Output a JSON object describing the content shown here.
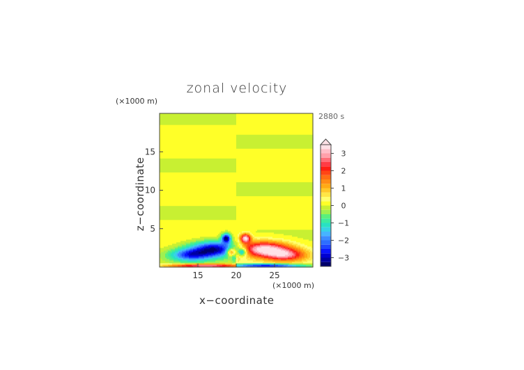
{
  "chart_data": {
    "type": "heatmap",
    "title": "zonal velocity",
    "xlabel": "x−coordinate",
    "ylabel": "z−coordinate",
    "x_units": "(×1000 m)",
    "y_units": "(×1000 m)",
    "time_label": "2880 s",
    "xlim": [
      10,
      30
    ],
    "ylim": [
      0,
      20
    ],
    "x_ticks": [
      15,
      20,
      25
    ],
    "y_ticks": [
      5,
      10,
      15
    ],
    "colorbar": {
      "levels": [
        -3.5,
        -3.25,
        -3.0,
        -2.75,
        -2.5,
        -2.25,
        -2.0,
        -1.75,
        -1.5,
        -1.25,
        -1.0,
        -0.75,
        -0.5,
        -0.25,
        0.0,
        0.25,
        0.5,
        0.75,
        1.0,
        1.25,
        1.5,
        1.75,
        2.0,
        2.25,
        2.5,
        2.75,
        3.0,
        3.25,
        3.5
      ],
      "colors": [
        "#00006b",
        "#0000a0",
        "#0000d2",
        "#0a14ff",
        "#1e46ff",
        "#2d6eff",
        "#3c8cff",
        "#46b4ff",
        "#37d2e6",
        "#28e1c3",
        "#3ceba0",
        "#5af07d",
        "#a0f050",
        "#c8f032",
        "#ffff28",
        "#ffff6e",
        "#ffe646",
        "#ffc828",
        "#ffaa14",
        "#ff8c14",
        "#ff6e14",
        "#ff4614",
        "#ff1e14",
        "#ff3c46",
        "#ff6e78",
        "#ffa0aa",
        "#ffbec8",
        "#ffe1e6"
      ],
      "tick_labels": [
        "3",
        "2",
        "1",
        "0",
        "−1",
        "−2",
        "−3"
      ],
      "tick_values": [
        3,
        2,
        1,
        0,
        -1,
        -2,
        -3
      ],
      "extend": "max"
    },
    "grid": false,
    "legend": "colorbar-right"
  }
}
